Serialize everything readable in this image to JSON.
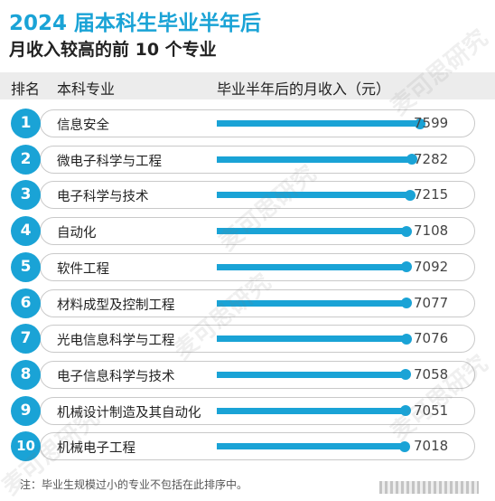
{
  "header": {
    "title": "2024 届本科生毕业半年后",
    "subtitle": "月收入较高的前 10 个专业"
  },
  "columns": {
    "rank": "排名",
    "major": "本科专业",
    "value": "毕业半年后的月收入（元）"
  },
  "watermark": "麦可思研究",
  "note": "注：毕业生规模过小的专业不包括在此排序中。",
  "colors": {
    "accent": "#1aa3d6"
  },
  "chart_data": {
    "type": "bar",
    "title": "2024 届本科生毕业半年后",
    "subtitle": "月收入较高的前 10 个专业",
    "ylabel": "毕业半年后的月收入（元）",
    "xlim": [
      0,
      7599
    ],
    "ranks": [
      "1",
      "2",
      "3",
      "4",
      "5",
      "6",
      "7",
      "8",
      "9",
      "10"
    ],
    "categories": [
      "信息安全",
      "微电子科学与工程",
      "电子科学与技术",
      "自动化",
      "软件工程",
      "材料成型及控制工程",
      "光电信息科学与工程",
      "电子信息科学与技术",
      "机械设计制造及其自动化",
      "机械电子工程"
    ],
    "values": [
      7599,
      7282,
      7215,
      7108,
      7092,
      7077,
      7076,
      7058,
      7051,
      7018
    ]
  }
}
